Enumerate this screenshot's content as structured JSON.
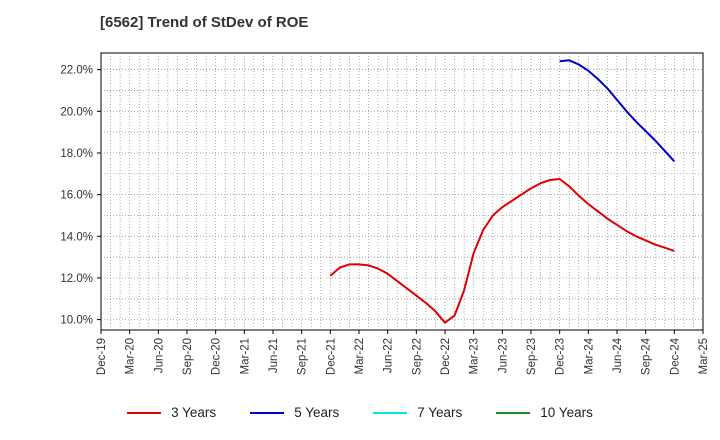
{
  "chart_data": {
    "type": "line",
    "title": "[6562]  Trend of StDev of ROE",
    "xlabel": "",
    "ylabel": "",
    "ylim": [
      9.5,
      22.8
    ],
    "y_ticks": [
      "10.0%",
      "12.0%",
      "14.0%",
      "16.0%",
      "18.0%",
      "20.0%",
      "22.0%"
    ],
    "y_tick_values": [
      10,
      12,
      14,
      16,
      18,
      20,
      22
    ],
    "x_ticks": [
      "Dec-19",
      "Mar-20",
      "Jun-20",
      "Sep-20",
      "Dec-20",
      "Mar-21",
      "Jun-21",
      "Sep-21",
      "Dec-21",
      "Mar-22",
      "Jun-22",
      "Sep-22",
      "Dec-22",
      "Mar-23",
      "Jun-23",
      "Sep-23",
      "Dec-23",
      "Mar-24",
      "Jun-24",
      "Sep-24",
      "Dec-24",
      "Mar-25"
    ],
    "grid": true,
    "legend_position": "bottom",
    "series": [
      {
        "name": "3 Years",
        "color": "#e00000",
        "points": [
          [
            "Dec-21",
            12.1
          ],
          [
            "Jan-22",
            12.5
          ],
          [
            "Feb-22",
            12.65
          ],
          [
            "Mar-22",
            12.65
          ],
          [
            "Apr-22",
            12.6
          ],
          [
            "May-22",
            12.45
          ],
          [
            "Jun-22",
            12.2
          ],
          [
            "Jul-22",
            11.85
          ],
          [
            "Aug-22",
            11.5
          ],
          [
            "Sep-22",
            11.15
          ],
          [
            "Oct-22",
            10.8
          ],
          [
            "Nov-22",
            10.4
          ],
          [
            "Dec-22",
            9.85
          ],
          [
            "Jan-23",
            10.2
          ],
          [
            "Feb-23",
            11.4
          ],
          [
            "Mar-23",
            13.2
          ],
          [
            "Apr-23",
            14.3
          ],
          [
            "May-23",
            15.0
          ],
          [
            "Jun-23",
            15.4
          ],
          [
            "Jul-23",
            15.7
          ],
          [
            "Aug-23",
            16.0
          ],
          [
            "Sep-23",
            16.3
          ],
          [
            "Oct-23",
            16.55
          ],
          [
            "Nov-23",
            16.7
          ],
          [
            "Dec-23",
            16.75
          ],
          [
            "Jan-24",
            16.4
          ],
          [
            "Feb-24",
            15.95
          ],
          [
            "Mar-24",
            15.55
          ],
          [
            "Apr-24",
            15.2
          ],
          [
            "May-24",
            14.85
          ],
          [
            "Jun-24",
            14.55
          ],
          [
            "Jul-24",
            14.25
          ],
          [
            "Aug-24",
            14.0
          ],
          [
            "Sep-24",
            13.8
          ],
          [
            "Oct-24",
            13.6
          ],
          [
            "Nov-24",
            13.45
          ],
          [
            "Dec-24",
            13.3
          ]
        ]
      },
      {
        "name": "5 Years",
        "color": "#0000c8",
        "points": [
          [
            "Dec-23",
            22.4
          ],
          [
            "Jan-24",
            22.45
          ],
          [
            "Feb-24",
            22.25
          ],
          [
            "Mar-24",
            21.95
          ],
          [
            "Apr-24",
            21.55
          ],
          [
            "May-24",
            21.1
          ],
          [
            "Jun-24",
            20.55
          ],
          [
            "Jul-24",
            20.0
          ],
          [
            "Aug-24",
            19.5
          ],
          [
            "Sep-24",
            19.05
          ],
          [
            "Oct-24",
            18.6
          ],
          [
            "Nov-24",
            18.1
          ],
          [
            "Dec-24",
            17.6
          ]
        ]
      },
      {
        "name": "7 Years",
        "color": "#00e5e5",
        "points": []
      },
      {
        "name": "10 Years",
        "color": "#1a8a1a",
        "points": []
      }
    ]
  }
}
